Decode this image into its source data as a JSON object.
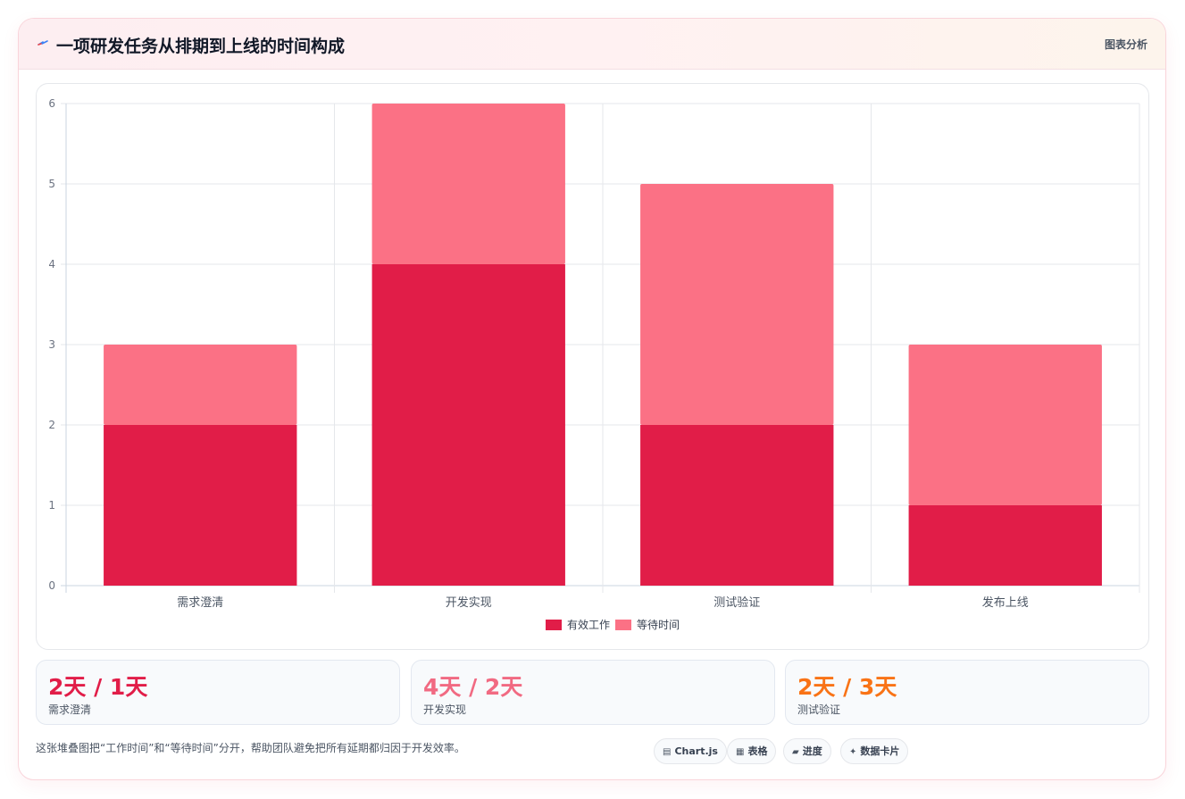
{
  "header": {
    "title": "一项研发任务从排期到上线的时间构成",
    "title_icon": "lightning-icon",
    "link_label": "图表分析"
  },
  "chart_data": {
    "type": "bar",
    "stacked": true,
    "categories": [
      "需求澄清",
      "开发实现",
      "测试验证",
      "发布上线"
    ],
    "series": [
      {
        "name": "有效工作",
        "values": [
          2,
          4,
          2,
          1
        ],
        "color": "#e11d48"
      },
      {
        "name": "等待时间",
        "values": [
          1,
          2,
          3,
          2
        ],
        "color": "#fb7185"
      }
    ],
    "ylim": [
      0,
      6
    ],
    "yticks": [
      0,
      1,
      2,
      3,
      4,
      5,
      6
    ],
    "grid": true,
    "legend": "bottom-center"
  },
  "stats": [
    {
      "value": "2天 / 1天",
      "label": "需求澄清",
      "color": "#e11d48"
    },
    {
      "value": "4天 / 2天",
      "label": "开发实现",
      "color": "#f16a82"
    },
    {
      "value": "2天 / 3天",
      "label": "测试验证",
      "color": "#f97316"
    }
  ],
  "footer": {
    "note": "这张堆叠图把“工作时间”和“等待时间”分开，帮助团队避免把所有延期都归因于开发效率。",
    "pills": [
      {
        "icon": "chart-icon",
        "glyph": "▤",
        "label": "Chart.js"
      },
      {
        "icon": "table-icon",
        "glyph": "▦",
        "label": "表格"
      },
      {
        "icon": "progress-icon",
        "glyph": "▰",
        "label": "进度"
      },
      {
        "icon": "sparkle-icon",
        "glyph": "✦",
        "label": "数据卡片"
      }
    ]
  }
}
